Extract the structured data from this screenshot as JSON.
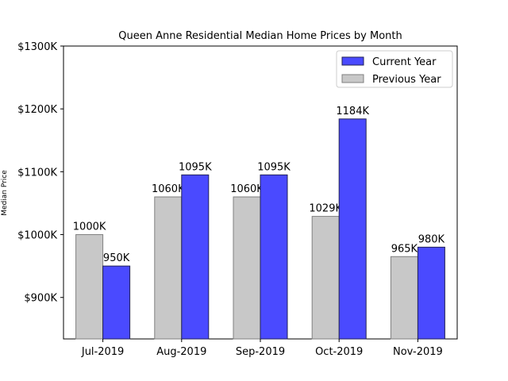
{
  "chart_data": {
    "type": "bar",
    "title": "Queen Anne Residential Median Home Prices by Month",
    "xlabel": "",
    "ylabel": "Median Price",
    "categories": [
      "Jul-2019",
      "Aug-2019",
      "Sep-2019",
      "Oct-2019",
      "Nov-2019"
    ],
    "yticks": [
      900,
      1000,
      1100,
      1200,
      1300
    ],
    "ytick_labels": [
      "$900K",
      "$1000K",
      "$1100K",
      "$1200K",
      "$1300K"
    ],
    "ylim": [
      834,
      1300
    ],
    "grid": false,
    "legend_position": "top-right",
    "series": [
      {
        "name": "Previous Year",
        "values": [
          1000,
          1060,
          1060,
          1029,
          965
        ],
        "labels": [
          "1000K",
          "1060K",
          "1060K",
          "1029K",
          "965K"
        ],
        "color": "#c8c8c8",
        "edge_color": "#808080"
      },
      {
        "name": "Current Year",
        "values": [
          950,
          1095,
          1095,
          1184,
          980
        ],
        "labels": [
          "950K",
          "1095K",
          "1095K",
          "1184K",
          "980K"
        ],
        "color": "#4a4aff",
        "edge_color": "#222255"
      }
    ],
    "legend_order": [
      1,
      0
    ]
  }
}
